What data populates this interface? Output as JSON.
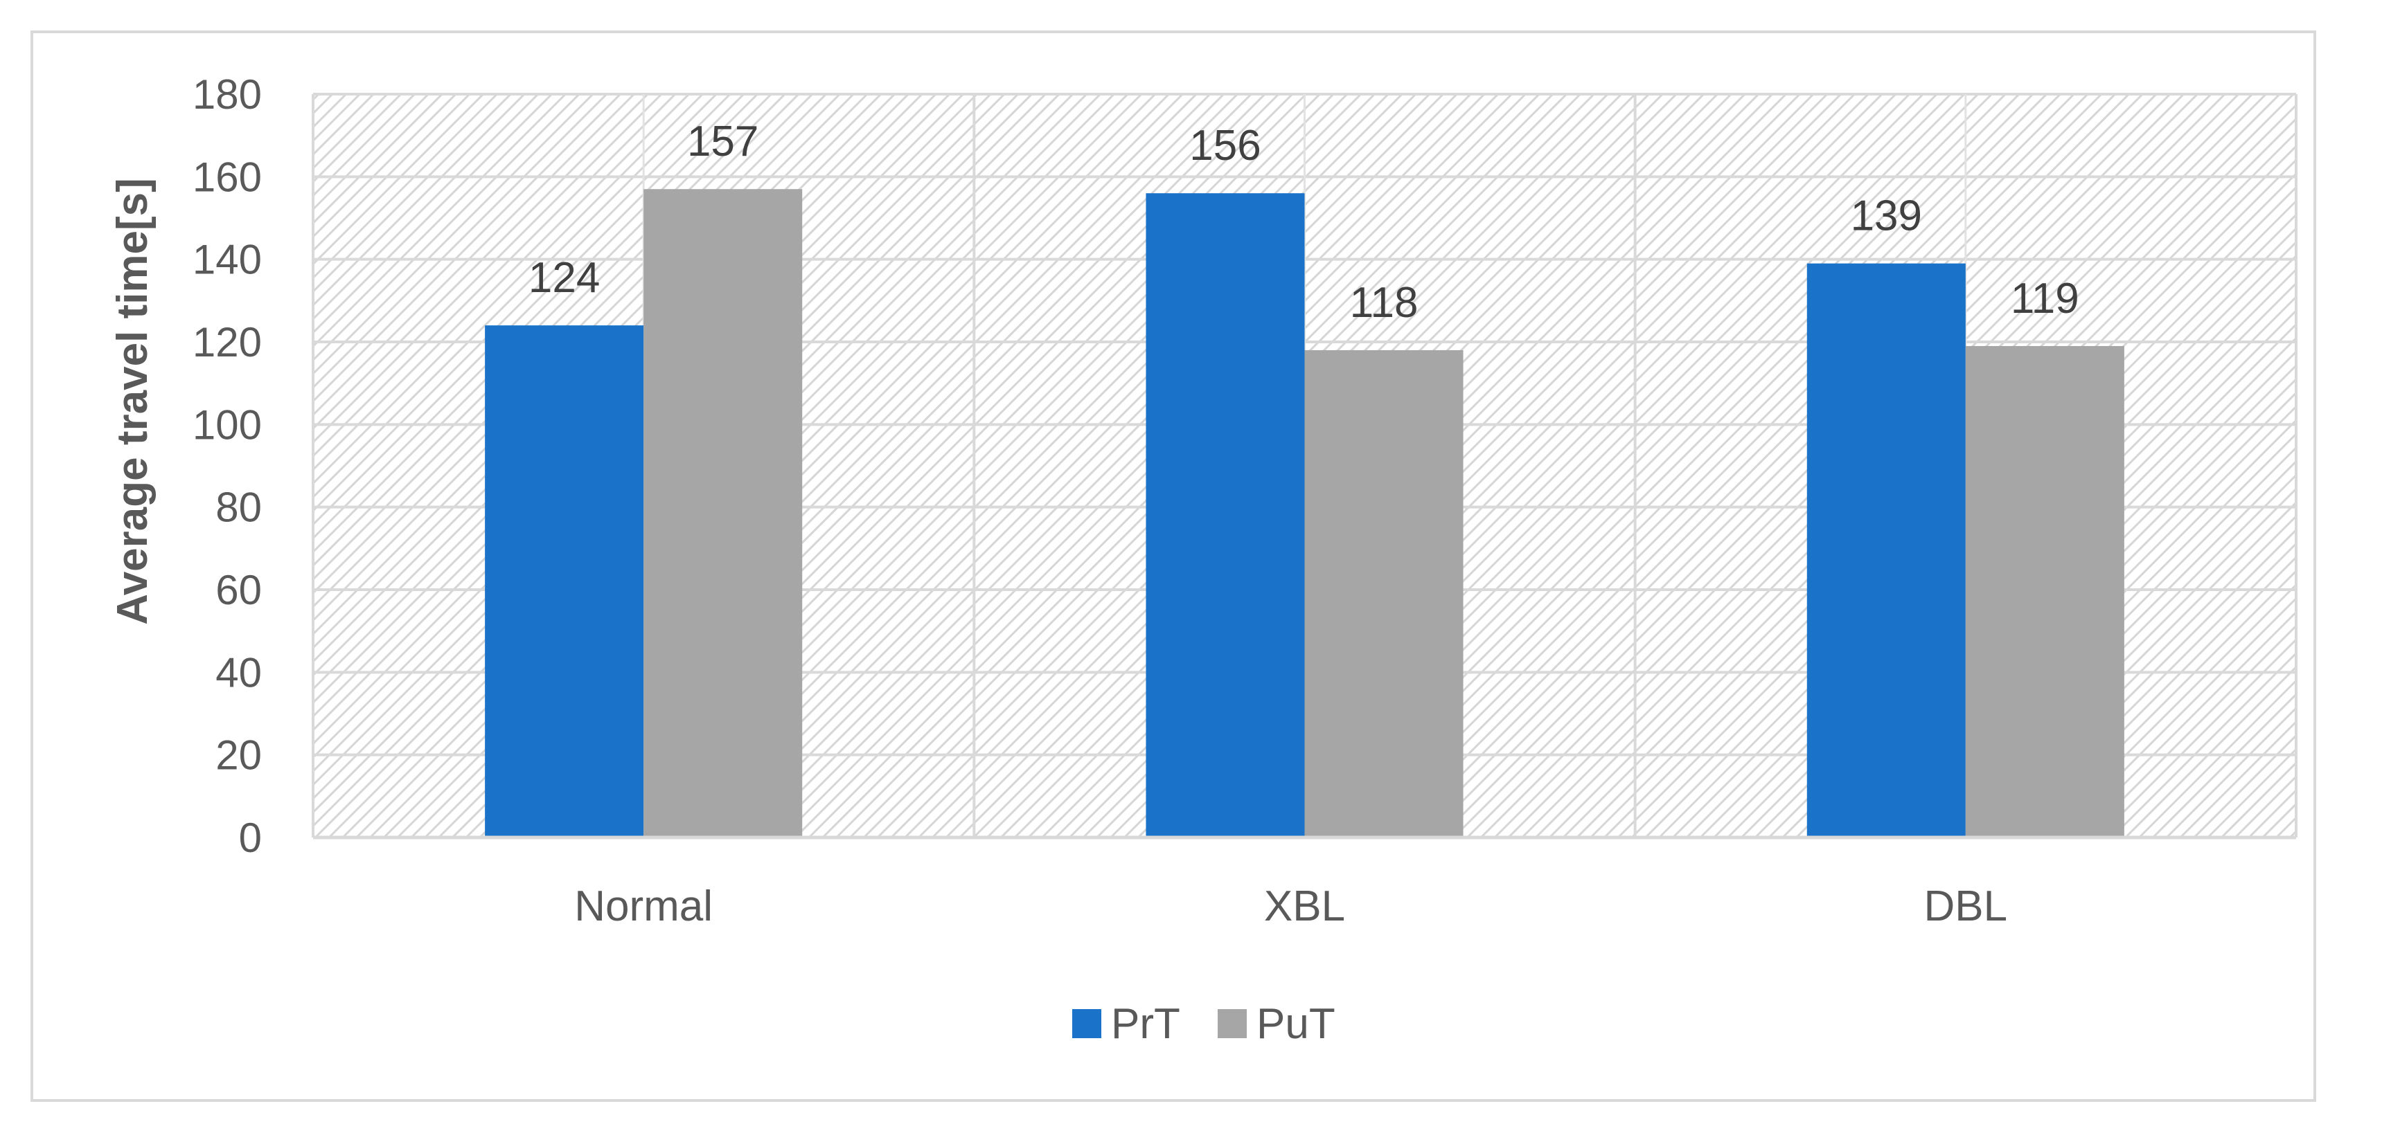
{
  "chart_data": {
    "type": "bar",
    "categories": [
      "Normal",
      "XBL",
      "DBL"
    ],
    "series": [
      {
        "name": "PrT",
        "values": [
          124,
          156,
          139
        ],
        "color": "#1a73c9"
      },
      {
        "name": "PuT",
        "values": [
          157,
          118,
          119
        ],
        "color": "#a6a6a6"
      }
    ],
    "title": "",
    "xlabel": "",
    "ylabel": "Average travel time[s]",
    "ylim": [
      0,
      180
    ],
    "yticks": [
      0,
      20,
      40,
      60,
      80,
      100,
      120,
      140,
      160,
      180
    ],
    "grid": true,
    "legend": "bottom-center",
    "plot_background": "hatched"
  }
}
